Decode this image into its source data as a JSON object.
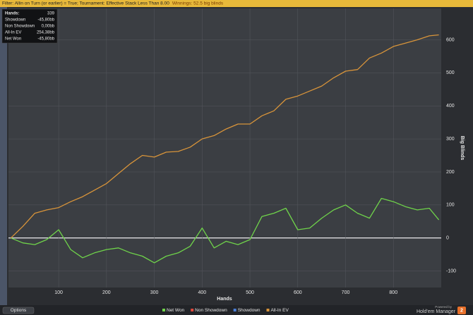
{
  "chart_data": {
    "type": "line",
    "filter": "Filter: Allin on Turn (or earlier) = True; Tournament: Effective Stack Less Than 8.00",
    "winnings": "Winnings: 52.5 big blinds",
    "tooltip": [
      {
        "label": "Hands:",
        "value": "339"
      },
      {
        "label": "Showdown",
        "value": "-45,80bb"
      },
      {
        "label": "Non Showdown",
        "value": "0,00bb"
      },
      {
        "label": "All-In EV",
        "value": "254,38bb"
      },
      {
        "label": "Net Won",
        "value": "-45,80bb"
      }
    ],
    "xlabel": "Hands",
    "ylabel": "Big Blinds",
    "x": [
      0,
      25,
      50,
      75,
      100,
      125,
      150,
      175,
      200,
      225,
      250,
      275,
      300,
      325,
      350,
      375,
      400,
      425,
      450,
      475,
      500,
      525,
      550,
      575,
      600,
      625,
      650,
      675,
      700,
      725,
      750,
      775,
      800,
      825,
      850,
      875,
      895
    ],
    "series": [
      {
        "name": "Net Won",
        "color": "#6fd34a",
        "values": [
          0,
          -15,
          -20,
          -5,
          25,
          -35,
          -60,
          -45,
          -35,
          -30,
          -45,
          -55,
          -75,
          -55,
          -45,
          -25,
          30,
          -30,
          -10,
          -20,
          -5,
          65,
          75,
          90,
          25,
          30,
          60,
          85,
          100,
          75,
          60,
          120,
          110,
          95,
          85,
          90,
          55
        ]
      },
      {
        "name": "Non Showdown",
        "color": "#e0483c",
        "values": [
          null,
          null,
          null,
          null,
          null,
          null,
          null,
          null,
          null,
          null,
          null,
          null,
          null,
          null,
          null,
          null,
          null,
          null,
          null,
          null,
          null,
          null,
          null,
          null,
          null,
          null,
          null,
          null,
          null,
          null,
          null,
          null,
          null,
          null,
          null,
          null,
          null
        ]
      },
      {
        "name": "Showdown",
        "color": "#4a7fd8",
        "values": [
          null,
          null,
          null,
          null,
          null,
          null,
          null,
          null,
          null,
          null,
          null,
          null,
          null,
          null,
          null,
          null,
          null,
          null,
          null,
          null,
          null,
          null,
          null,
          null,
          null,
          null,
          null,
          null,
          null,
          null,
          null,
          null,
          null,
          null,
          null,
          null,
          null
        ]
      },
      {
        "name": "All-In EV",
        "color": "#d8943a",
        "values": [
          0,
          35,
          75,
          85,
          92,
          110,
          125,
          145,
          165,
          195,
          225,
          250,
          245,
          260,
          262,
          275,
          300,
          310,
          330,
          345,
          345,
          370,
          385,
          420,
          430,
          445,
          460,
          485,
          505,
          510,
          545,
          560,
          580,
          590,
          600,
          612,
          615
        ]
      }
    ],
    "xlim": [
      -5,
      900
    ],
    "ylim": [
      -150,
      695
    ],
    "xticks": [
      100,
      200,
      300,
      400,
      500,
      600,
      700,
      800
    ],
    "yticks": [
      -100,
      0,
      100,
      200,
      300,
      400,
      500,
      600
    ],
    "grid": true,
    "options": "Options",
    "powered_by": "Powered by",
    "brand": "Hold'em Manager",
    "brand_badge": "2"
  }
}
